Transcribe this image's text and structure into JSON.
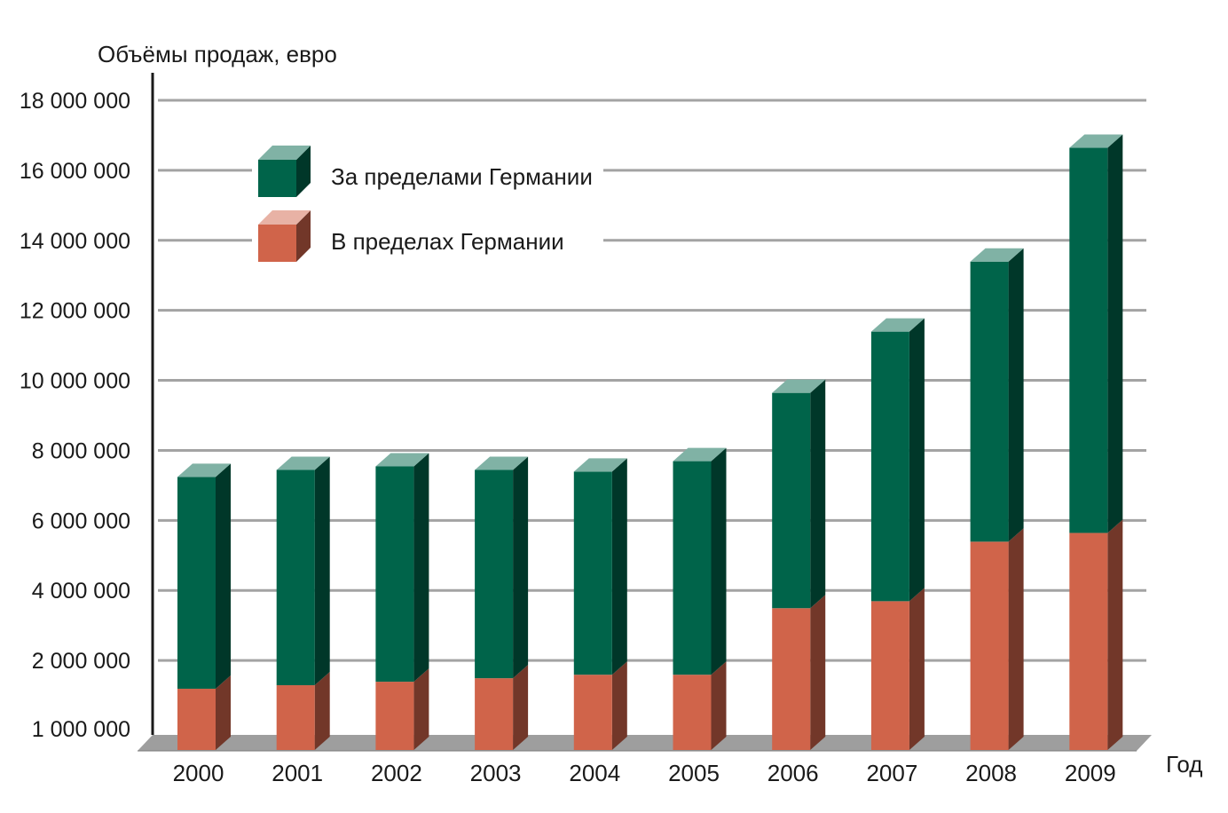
{
  "chart_data": {
    "type": "bar",
    "stacked": true,
    "style": "3d",
    "ylabel": "Объёмы продаж, евро",
    "xlabel": "Год",
    "categories": [
      "2000",
      "2001",
      "2002",
      "2003",
      "2004",
      "2005",
      "2006",
      "2007",
      "2008",
      "2009"
    ],
    "ylim": [
      0,
      18000000
    ],
    "yticks": [
      {
        "value": 1000000,
        "label": "1 000 000"
      },
      {
        "value": 2000000,
        "label": "2 000 000"
      },
      {
        "value": 4000000,
        "label": "4 000 000"
      },
      {
        "value": 6000000,
        "label": "6 000 000"
      },
      {
        "value": 8000000,
        "label": "8 000 000"
      },
      {
        "value": 10000000,
        "label": "10 000 000"
      },
      {
        "value": 12000000,
        "label": "12 000 000"
      },
      {
        "value": 14000000,
        "label": "14 000 000"
      },
      {
        "value": 16000000,
        "label": "16 000 000"
      },
      {
        "value": 18000000,
        "label": "18 000 000"
      }
    ],
    "grid": true,
    "legend_position": "top-left",
    "series": [
      {
        "name": "В пределах Германии",
        "color": "#d0644a",
        "values": [
          1750000,
          1850000,
          1950000,
          2050000,
          2150000,
          2150000,
          4050000,
          4250000,
          5950000,
          6200000
        ]
      },
      {
        "name": "За пределами Германии",
        "color": "#00644a",
        "values": [
          6050000,
          6150000,
          6150000,
          5950000,
          5800000,
          6100000,
          6150000,
          7700000,
          8000000,
          11000000
        ]
      }
    ],
    "legend": [
      {
        "label": "За пределами Германии",
        "color": "#00644a"
      },
      {
        "label": "В пределах Германии",
        "color": "#d0644a"
      }
    ]
  }
}
